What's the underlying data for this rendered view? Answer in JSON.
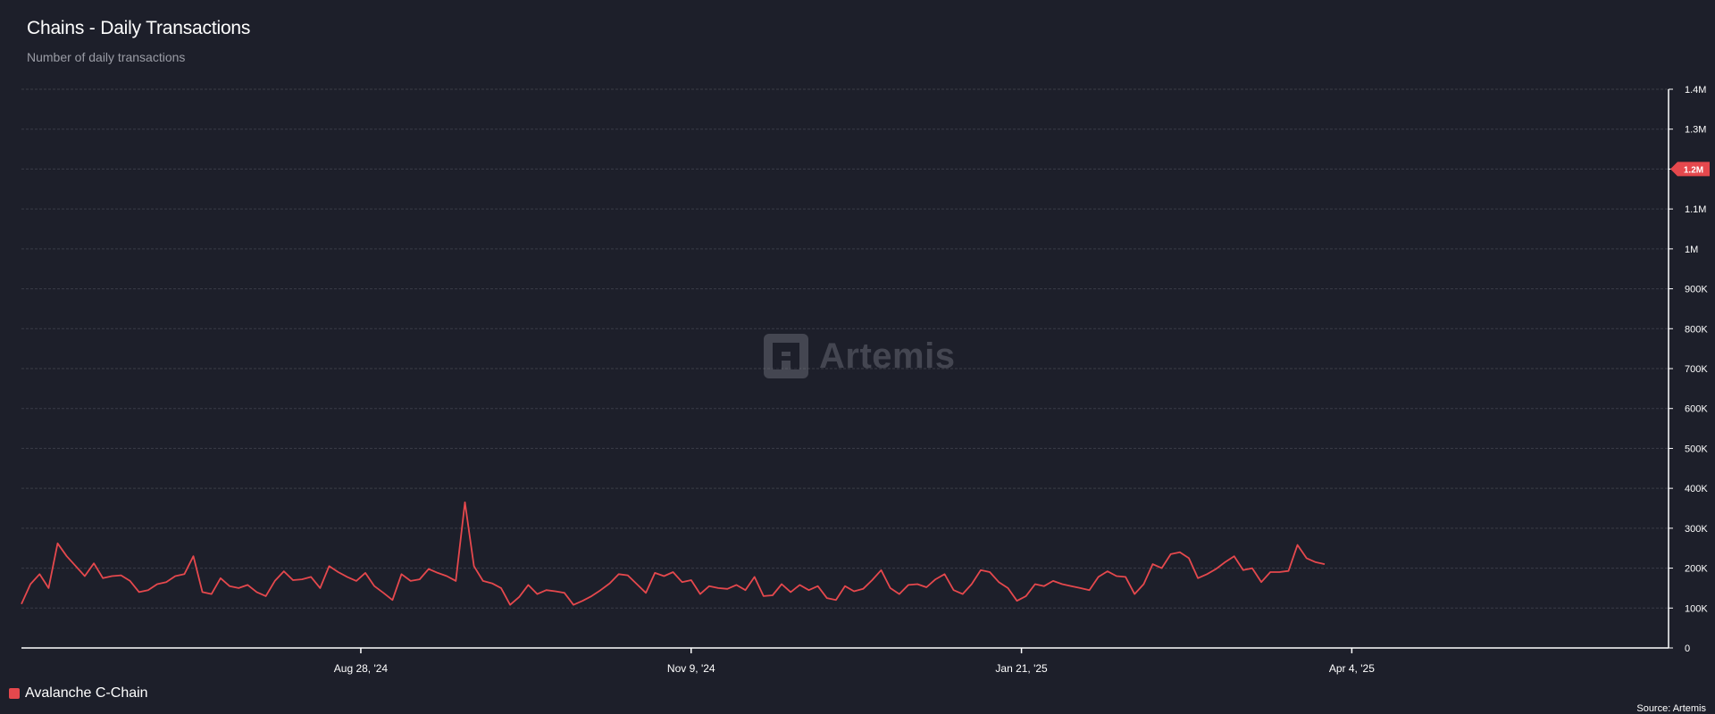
{
  "header": {
    "title": "Chains - Daily Transactions",
    "subtitle": "Number of daily transactions"
  },
  "watermark": {
    "brand": "Artemis",
    "icon": "artemis-logo-icon"
  },
  "legend": {
    "label": "Avalanche C-Chain",
    "color": "#e5484d"
  },
  "source": "Source: Artemis",
  "colors": {
    "line": "#e5484d",
    "background": "#1d1f2a",
    "grid": "#3a3c47",
    "axis": "#ffffff"
  },
  "chart_data": {
    "type": "line",
    "title": "Chains - Daily Transactions",
    "subtitle": "Number of daily transactions",
    "x_start": "2024-06-14",
    "x_end": "2025-06-13",
    "xticks": [
      {
        "date": "2024-08-28",
        "label": "Aug 28, '24"
      },
      {
        "date": "2024-11-09",
        "label": "Nov 9, '24"
      },
      {
        "date": "2025-01-21",
        "label": "Jan 21, '25"
      },
      {
        "date": "2025-04-04",
        "label": "Apr 4, '25"
      }
    ],
    "yticks": [
      {
        "value": 0,
        "label": "0"
      },
      {
        "value": 100000,
        "label": "100K"
      },
      {
        "value": 200000,
        "label": "200K"
      },
      {
        "value": 300000,
        "label": "300K"
      },
      {
        "value": 400000,
        "label": "400K"
      },
      {
        "value": 500000,
        "label": "500K"
      },
      {
        "value": 600000,
        "label": "600K"
      },
      {
        "value": 700000,
        "label": "700K"
      },
      {
        "value": 800000,
        "label": "800K"
      },
      {
        "value": 900000,
        "label": "900K"
      },
      {
        "value": 1000000,
        "label": "1M"
      },
      {
        "value": 1100000,
        "label": "1.1M"
      },
      {
        "value": 1200000,
        "label": "1.2M"
      },
      {
        "value": 1300000,
        "label": "1.3M"
      },
      {
        "value": 1400000,
        "label": "1.4M"
      }
    ],
    "ylim": [
      0,
      1400000
    ],
    "grid": true,
    "legend_position": "bottom-left",
    "last_value_label": "1.2M",
    "series": [
      {
        "name": "Avalanche C-Chain",
        "color": "#e5484d",
        "points": [
          [
            "2024-06-14",
            110000
          ],
          [
            "2024-06-16",
            160000
          ],
          [
            "2024-06-18",
            185000
          ],
          [
            "2024-06-20",
            150000
          ],
          [
            "2024-06-22",
            262000
          ],
          [
            "2024-06-24",
            230000
          ],
          [
            "2024-06-26",
            205000
          ],
          [
            "2024-06-28",
            180000
          ],
          [
            "2024-06-30",
            212000
          ],
          [
            "2024-07-02",
            175000
          ],
          [
            "2024-07-04",
            180000
          ],
          [
            "2024-07-06",
            182000
          ],
          [
            "2024-07-08",
            168000
          ],
          [
            "2024-07-10",
            140000
          ],
          [
            "2024-07-12",
            145000
          ],
          [
            "2024-07-14",
            160000
          ],
          [
            "2024-07-16",
            165000
          ],
          [
            "2024-07-18",
            180000
          ],
          [
            "2024-07-20",
            185000
          ],
          [
            "2024-07-22",
            230000
          ],
          [
            "2024-07-24",
            140000
          ],
          [
            "2024-07-26",
            135000
          ],
          [
            "2024-07-28",
            175000
          ],
          [
            "2024-07-30",
            155000
          ],
          [
            "2024-08-01",
            150000
          ],
          [
            "2024-08-03",
            158000
          ],
          [
            "2024-08-05",
            140000
          ],
          [
            "2024-08-07",
            130000
          ],
          [
            "2024-08-09",
            168000
          ],
          [
            "2024-08-11",
            192000
          ],
          [
            "2024-08-13",
            170000
          ],
          [
            "2024-08-15",
            172000
          ],
          [
            "2024-08-17",
            178000
          ],
          [
            "2024-08-19",
            150000
          ],
          [
            "2024-08-21",
            205000
          ],
          [
            "2024-08-23",
            190000
          ],
          [
            "2024-08-25",
            178000
          ],
          [
            "2024-08-27",
            168000
          ],
          [
            "2024-08-29",
            188000
          ],
          [
            "2024-08-31",
            155000
          ],
          [
            "2024-09-02",
            138000
          ],
          [
            "2024-09-04",
            120000
          ],
          [
            "2024-09-06",
            185000
          ],
          [
            "2024-09-08",
            168000
          ],
          [
            "2024-09-10",
            172000
          ],
          [
            "2024-09-12",
            198000
          ],
          [
            "2024-09-14",
            188000
          ],
          [
            "2024-09-16",
            180000
          ],
          [
            "2024-09-18",
            168000
          ],
          [
            "2024-09-20",
            365000
          ],
          [
            "2024-09-22",
            205000
          ],
          [
            "2024-09-24",
            168000
          ],
          [
            "2024-09-26",
            162000
          ],
          [
            "2024-09-28",
            150000
          ],
          [
            "2024-09-30",
            108000
          ],
          [
            "2024-10-02",
            128000
          ],
          [
            "2024-10-04",
            158000
          ],
          [
            "2024-10-06",
            135000
          ],
          [
            "2024-10-08",
            145000
          ],
          [
            "2024-10-10",
            142000
          ],
          [
            "2024-10-12",
            138000
          ],
          [
            "2024-10-14",
            108000
          ],
          [
            "2024-10-16",
            118000
          ],
          [
            "2024-10-18",
            130000
          ],
          [
            "2024-10-20",
            145000
          ],
          [
            "2024-10-22",
            162000
          ],
          [
            "2024-10-24",
            185000
          ],
          [
            "2024-10-26",
            182000
          ],
          [
            "2024-10-28",
            160000
          ],
          [
            "2024-10-30",
            138000
          ],
          [
            "2024-11-01",
            188000
          ],
          [
            "2024-11-03",
            180000
          ],
          [
            "2024-11-05",
            190000
          ],
          [
            "2024-11-07",
            165000
          ],
          [
            "2024-11-09",
            170000
          ],
          [
            "2024-11-11",
            135000
          ],
          [
            "2024-11-13",
            155000
          ],
          [
            "2024-11-15",
            150000
          ],
          [
            "2024-11-17",
            148000
          ],
          [
            "2024-11-19",
            158000
          ],
          [
            "2024-11-21",
            145000
          ],
          [
            "2024-11-23",
            178000
          ],
          [
            "2024-11-25",
            130000
          ],
          [
            "2024-11-27",
            132000
          ],
          [
            "2024-11-29",
            160000
          ],
          [
            "2024-12-01",
            140000
          ],
          [
            "2024-12-03",
            158000
          ],
          [
            "2024-12-05",
            145000
          ],
          [
            "2024-12-07",
            155000
          ],
          [
            "2024-12-09",
            125000
          ],
          [
            "2024-12-11",
            120000
          ],
          [
            "2024-12-13",
            155000
          ],
          [
            "2024-12-15",
            142000
          ],
          [
            "2024-12-17",
            148000
          ],
          [
            "2024-12-19",
            170000
          ],
          [
            "2024-12-21",
            195000
          ],
          [
            "2024-12-23",
            150000
          ],
          [
            "2024-12-25",
            135000
          ],
          [
            "2024-12-27",
            158000
          ],
          [
            "2024-12-29",
            160000
          ],
          [
            "2024-12-31",
            152000
          ],
          [
            "2025-01-02",
            172000
          ],
          [
            "2025-01-04",
            185000
          ],
          [
            "2025-01-06",
            145000
          ],
          [
            "2025-01-08",
            135000
          ],
          [
            "2025-01-10",
            160000
          ],
          [
            "2025-01-12",
            195000
          ],
          [
            "2025-01-14",
            190000
          ],
          [
            "2025-01-16",
            165000
          ],
          [
            "2025-01-18",
            150000
          ],
          [
            "2025-01-20",
            118000
          ],
          [
            "2025-01-22",
            130000
          ],
          [
            "2025-01-24",
            160000
          ],
          [
            "2025-01-26",
            155000
          ],
          [
            "2025-01-28",
            168000
          ],
          [
            "2025-01-30",
            160000
          ],
          [
            "2025-02-01",
            155000
          ],
          [
            "2025-02-03",
            150000
          ],
          [
            "2025-02-05",
            145000
          ],
          [
            "2025-02-07",
            178000
          ],
          [
            "2025-02-09",
            192000
          ],
          [
            "2025-02-11",
            180000
          ],
          [
            "2025-02-13",
            178000
          ],
          [
            "2025-02-15",
            135000
          ],
          [
            "2025-02-17",
            160000
          ],
          [
            "2025-02-19",
            210000
          ],
          [
            "2025-02-21",
            200000
          ],
          [
            "2025-02-23",
            235000
          ],
          [
            "2025-02-25",
            240000
          ],
          [
            "2025-02-27",
            225000
          ],
          [
            "2025-03-01",
            175000
          ],
          [
            "2025-03-03",
            185000
          ],
          [
            "2025-03-05",
            198000
          ],
          [
            "2025-03-07",
            215000
          ],
          [
            "2025-03-09",
            230000
          ],
          [
            "2025-03-11",
            195000
          ],
          [
            "2025-03-13",
            200000
          ],
          [
            "2025-03-15",
            165000
          ],
          [
            "2025-03-17",
            190000
          ],
          [
            "2025-03-19",
            190000
          ],
          [
            "2025-03-21",
            193000
          ],
          [
            "2025-03-23",
            258000
          ],
          [
            "2025-03-25",
            225000
          ],
          [
            "2025-03-27",
            215000
          ],
          [
            "2025-03-29",
            210000
          ]
        ]
      }
    ]
  }
}
